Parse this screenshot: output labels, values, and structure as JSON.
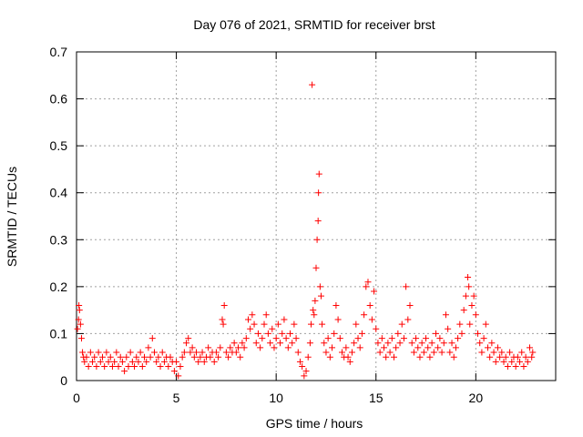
{
  "chart_data": {
    "type": "scatter",
    "title": "Day 076 of 2021, SRMTID for receiver brst",
    "xlabel": "GPS time / hours",
    "ylabel": "SRMTID / TECUs",
    "xlim": [
      0,
      24
    ],
    "ylim": [
      0,
      0.7
    ],
    "xticks": [
      0,
      5,
      10,
      15,
      20
    ],
    "yticks": [
      0,
      0.1,
      0.2,
      0.3,
      0.4,
      0.5,
      0.6,
      0.7
    ],
    "grid": true,
    "marker": "+",
    "color": "#ff0000",
    "series": [
      {
        "name": "SRMTID",
        "points": [
          [
            0.05,
            0.11
          ],
          [
            0.1,
            0.13
          ],
          [
            0.12,
            0.16
          ],
          [
            0.15,
            0.15
          ],
          [
            0.2,
            0.12
          ],
          [
            0.25,
            0.09
          ],
          [
            0.3,
            0.06
          ],
          [
            0.35,
            0.05
          ],
          [
            0.4,
            0.04
          ],
          [
            0.5,
            0.05
          ],
          [
            0.6,
            0.03
          ],
          [
            0.7,
            0.06
          ],
          [
            0.8,
            0.04
          ],
          [
            0.9,
            0.05
          ],
          [
            1.0,
            0.03
          ],
          [
            1.1,
            0.06
          ],
          [
            1.2,
            0.04
          ],
          [
            1.3,
            0.05
          ],
          [
            1.4,
            0.03
          ],
          [
            1.5,
            0.06
          ],
          [
            1.6,
            0.04
          ],
          [
            1.7,
            0.05
          ],
          [
            1.8,
            0.03
          ],
          [
            1.9,
            0.04
          ],
          [
            2.0,
            0.06
          ],
          [
            2.1,
            0.03
          ],
          [
            2.2,
            0.05
          ],
          [
            2.3,
            0.04
          ],
          [
            2.4,
            0.02
          ],
          [
            2.5,
            0.05
          ],
          [
            2.6,
            0.03
          ],
          [
            2.7,
            0.06
          ],
          [
            2.8,
            0.04
          ],
          [
            2.9,
            0.03
          ],
          [
            3.0,
            0.05
          ],
          [
            3.1,
            0.04
          ],
          [
            3.2,
            0.06
          ],
          [
            3.3,
            0.03
          ],
          [
            3.4,
            0.05
          ],
          [
            3.5,
            0.04
          ],
          [
            3.6,
            0.07
          ],
          [
            3.7,
            0.05
          ],
          [
            3.8,
            0.09
          ],
          [
            3.9,
            0.06
          ],
          [
            4.0,
            0.04
          ],
          [
            4.1,
            0.05
          ],
          [
            4.2,
            0.03
          ],
          [
            4.3,
            0.06
          ],
          [
            4.4,
            0.04
          ],
          [
            4.5,
            0.05
          ],
          [
            4.6,
            0.03
          ],
          [
            4.7,
            0.05
          ],
          [
            4.8,
            0.04
          ],
          [
            4.9,
            0.02
          ],
          [
            5.0,
            0.04
          ],
          [
            5.1,
            0.01
          ],
          [
            5.2,
            0.03
          ],
          [
            5.3,
            0.05
          ],
          [
            5.4,
            0.06
          ],
          [
            5.5,
            0.08
          ],
          [
            5.6,
            0.09
          ],
          [
            5.7,
            0.06
          ],
          [
            5.8,
            0.07
          ],
          [
            5.9,
            0.05
          ],
          [
            6.0,
            0.06
          ],
          [
            6.1,
            0.04
          ],
          [
            6.2,
            0.05
          ],
          [
            6.3,
            0.06
          ],
          [
            6.4,
            0.04
          ],
          [
            6.5,
            0.05
          ],
          [
            6.6,
            0.07
          ],
          [
            6.7,
            0.05
          ],
          [
            6.8,
            0.06
          ],
          [
            6.9,
            0.04
          ],
          [
            7.0,
            0.06
          ],
          [
            7.1,
            0.05
          ],
          [
            7.2,
            0.07
          ],
          [
            7.3,
            0.13
          ],
          [
            7.35,
            0.12
          ],
          [
            7.4,
            0.16
          ],
          [
            7.5,
            0.06
          ],
          [
            7.6,
            0.05
          ],
          [
            7.7,
            0.07
          ],
          [
            7.8,
            0.06
          ],
          [
            7.9,
            0.08
          ],
          [
            8.0,
            0.06
          ],
          [
            8.1,
            0.07
          ],
          [
            8.2,
            0.05
          ],
          [
            8.3,
            0.08
          ],
          [
            8.4,
            0.07
          ],
          [
            8.5,
            0.09
          ],
          [
            8.6,
            0.13
          ],
          [
            8.7,
            0.11
          ],
          [
            8.8,
            0.14
          ],
          [
            8.9,
            0.12
          ],
          [
            9.0,
            0.08
          ],
          [
            9.1,
            0.1
          ],
          [
            9.2,
            0.07
          ],
          [
            9.3,
            0.09
          ],
          [
            9.4,
            0.12
          ],
          [
            9.5,
            0.14
          ],
          [
            9.6,
            0.1
          ],
          [
            9.7,
            0.08
          ],
          [
            9.8,
            0.11
          ],
          [
            9.9,
            0.07
          ],
          [
            10.0,
            0.09
          ],
          [
            10.1,
            0.12
          ],
          [
            10.2,
            0.08
          ],
          [
            10.3,
            0.1
          ],
          [
            10.4,
            0.13
          ],
          [
            10.5,
            0.09
          ],
          [
            10.6,
            0.07
          ],
          [
            10.7,
            0.1
          ],
          [
            10.8,
            0.08
          ],
          [
            10.9,
            0.12
          ],
          [
            11.0,
            0.09
          ],
          [
            11.1,
            0.06
          ],
          [
            11.2,
            0.04
          ],
          [
            11.3,
            0.03
          ],
          [
            11.4,
            0.01
          ],
          [
            11.5,
            0.02
          ],
          [
            11.6,
            0.05
          ],
          [
            11.7,
            0.08
          ],
          [
            11.75,
            0.12
          ],
          [
            11.8,
            0.63
          ],
          [
            11.85,
            0.15
          ],
          [
            11.9,
            0.14
          ],
          [
            11.95,
            0.17
          ],
          [
            12.0,
            0.24
          ],
          [
            12.05,
            0.3
          ],
          [
            12.1,
            0.34
          ],
          [
            12.12,
            0.4
          ],
          [
            12.15,
            0.44
          ],
          [
            12.2,
            0.2
          ],
          [
            12.25,
            0.18
          ],
          [
            12.3,
            0.12
          ],
          [
            12.4,
            0.08
          ],
          [
            12.5,
            0.06
          ],
          [
            12.6,
            0.09
          ],
          [
            12.7,
            0.05
          ],
          [
            12.8,
            0.07
          ],
          [
            12.9,
            0.1
          ],
          [
            13.0,
            0.16
          ],
          [
            13.1,
            0.13
          ],
          [
            13.2,
            0.09
          ],
          [
            13.3,
            0.06
          ],
          [
            13.4,
            0.05
          ],
          [
            13.5,
            0.07
          ],
          [
            13.6,
            0.05
          ],
          [
            13.7,
            0.04
          ],
          [
            13.8,
            0.06
          ],
          [
            13.9,
            0.08
          ],
          [
            14.0,
            0.12
          ],
          [
            14.1,
            0.09
          ],
          [
            14.2,
            0.07
          ],
          [
            14.3,
            0.1
          ],
          [
            14.4,
            0.14
          ],
          [
            14.5,
            0.2
          ],
          [
            14.6,
            0.21
          ],
          [
            14.7,
            0.16
          ],
          [
            14.8,
            0.13
          ],
          [
            14.9,
            0.19
          ],
          [
            15.0,
            0.11
          ],
          [
            15.1,
            0.08
          ],
          [
            15.2,
            0.06
          ],
          [
            15.3,
            0.09
          ],
          [
            15.4,
            0.07
          ],
          [
            15.5,
            0.05
          ],
          [
            15.6,
            0.08
          ],
          [
            15.7,
            0.06
          ],
          [
            15.8,
            0.09
          ],
          [
            15.9,
            0.05
          ],
          [
            16.0,
            0.07
          ],
          [
            16.1,
            0.1
          ],
          [
            16.2,
            0.08
          ],
          [
            16.3,
            0.12
          ],
          [
            16.4,
            0.09
          ],
          [
            16.5,
            0.2
          ],
          [
            16.6,
            0.13
          ],
          [
            16.7,
            0.16
          ],
          [
            16.8,
            0.08
          ],
          [
            16.9,
            0.06
          ],
          [
            17.0,
            0.09
          ],
          [
            17.1,
            0.07
          ],
          [
            17.2,
            0.05
          ],
          [
            17.3,
            0.08
          ],
          [
            17.4,
            0.06
          ],
          [
            17.5,
            0.09
          ],
          [
            17.6,
            0.07
          ],
          [
            17.7,
            0.05
          ],
          [
            17.8,
            0.08
          ],
          [
            17.9,
            0.06
          ],
          [
            18.0,
            0.1
          ],
          [
            18.1,
            0.07
          ],
          [
            18.2,
            0.09
          ],
          [
            18.3,
            0.06
          ],
          [
            18.4,
            0.08
          ],
          [
            18.5,
            0.14
          ],
          [
            18.6,
            0.11
          ],
          [
            18.7,
            0.06
          ],
          [
            18.8,
            0.08
          ],
          [
            18.9,
            0.05
          ],
          [
            19.0,
            0.07
          ],
          [
            19.1,
            0.09
          ],
          [
            19.2,
            0.12
          ],
          [
            19.3,
            0.1
          ],
          [
            19.4,
            0.15
          ],
          [
            19.5,
            0.18
          ],
          [
            19.6,
            0.22
          ],
          [
            19.65,
            0.2
          ],
          [
            19.7,
            0.12
          ],
          [
            19.8,
            0.16
          ],
          [
            19.9,
            0.18
          ],
          [
            20.0,
            0.14
          ],
          [
            20.1,
            0.1
          ],
          [
            20.2,
            0.08
          ],
          [
            20.3,
            0.06
          ],
          [
            20.4,
            0.09
          ],
          [
            20.5,
            0.12
          ],
          [
            20.6,
            0.07
          ],
          [
            20.7,
            0.05
          ],
          [
            20.8,
            0.08
          ],
          [
            20.9,
            0.06
          ],
          [
            21.0,
            0.04
          ],
          [
            21.1,
            0.07
          ],
          [
            21.2,
            0.05
          ],
          [
            21.3,
            0.06
          ],
          [
            21.4,
            0.04
          ],
          [
            21.5,
            0.05
          ],
          [
            21.6,
            0.03
          ],
          [
            21.7,
            0.06
          ],
          [
            21.8,
            0.04
          ],
          [
            21.9,
            0.05
          ],
          [
            22.0,
            0.03
          ],
          [
            22.1,
            0.05
          ],
          [
            22.2,
            0.04
          ],
          [
            22.3,
            0.06
          ],
          [
            22.4,
            0.03
          ],
          [
            22.5,
            0.05
          ],
          [
            22.6,
            0.04
          ],
          [
            22.7,
            0.07
          ],
          [
            22.8,
            0.05
          ],
          [
            22.85,
            0.06
          ]
        ]
      }
    ]
  }
}
